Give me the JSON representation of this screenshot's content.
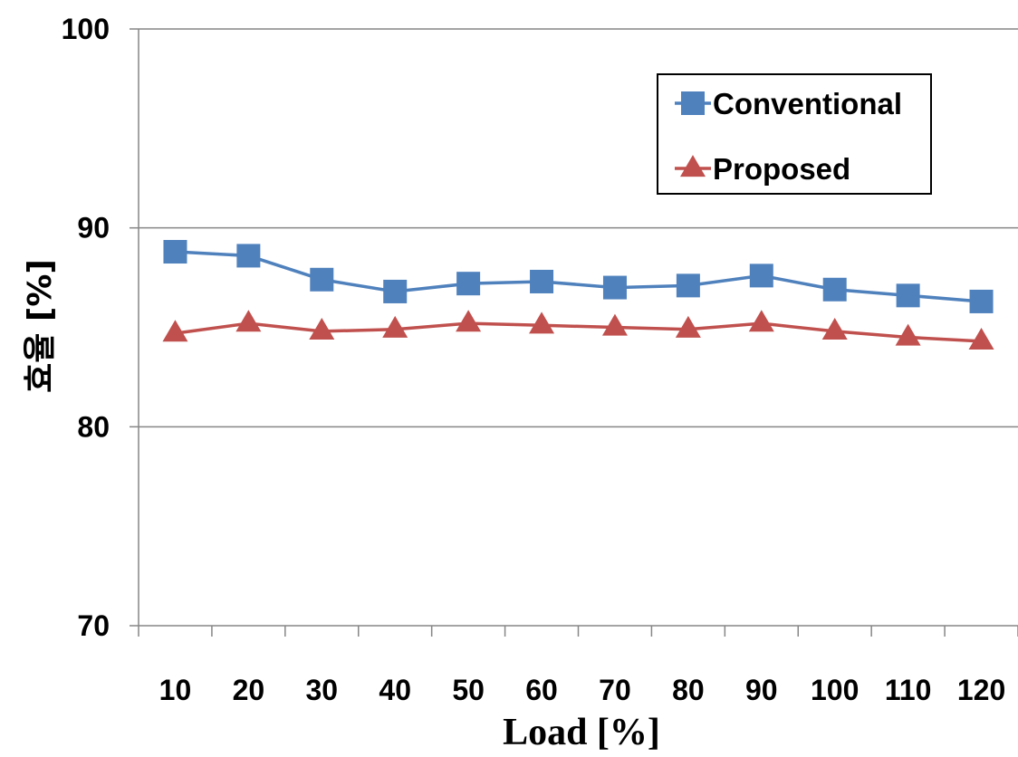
{
  "chart_data": {
    "type": "line",
    "categories": [
      "10",
      "20",
      "30",
      "40",
      "50",
      "60",
      "70",
      "80",
      "90",
      "100",
      "110",
      "120"
    ],
    "series": [
      {
        "name": "Conventional",
        "values": [
          88.8,
          88.6,
          87.4,
          86.8,
          87.2,
          87.3,
          87.0,
          87.1,
          87.6,
          86.9,
          86.6,
          86.3
        ],
        "color": "#4f81bd",
        "marker": "square"
      },
      {
        "name": "Proposed",
        "values": [
          84.7,
          85.2,
          84.8,
          84.9,
          85.2,
          85.1,
          85.0,
          84.9,
          85.2,
          84.8,
          84.5,
          84.3
        ],
        "color": "#c0504d",
        "marker": "triangle"
      }
    ],
    "xlabel": "Load [%]",
    "ylabel": "효율 [%]",
    "ylim": [
      70,
      100
    ],
    "yticks": [
      "70",
      "80",
      "90",
      "100"
    ],
    "grid": true,
    "legend_position": "top-right"
  }
}
